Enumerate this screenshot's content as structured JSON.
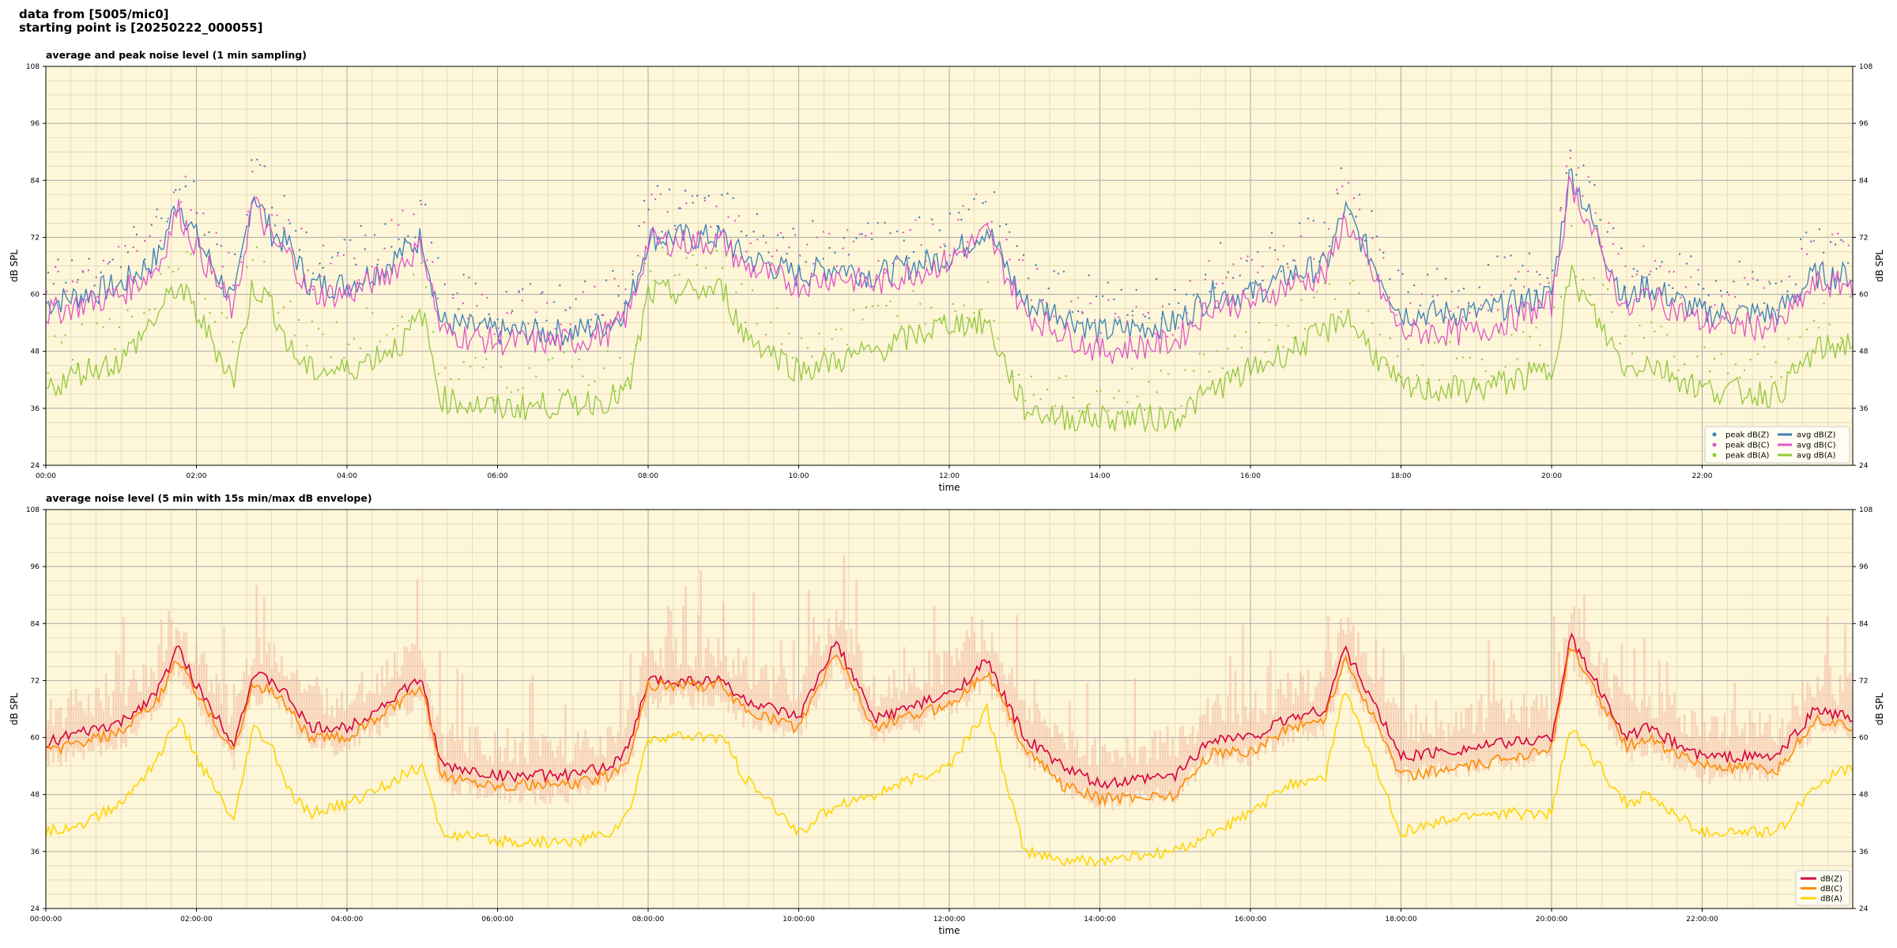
{
  "header": {
    "line1": "data from [5005/mic0]",
    "line2": "starting point is [20250222_000055]"
  },
  "colors": {
    "plot_bg": "#fdf6d8",
    "grid_major": "#a9a9a9",
    "grid_minor": "#d9cfae",
    "dBZ": "#3b7fb8",
    "dBC": "#e055c8",
    "dBA": "#93c83a",
    "env": "#f4b8a0",
    "dBZ_5min": "#d6003f",
    "dBC_5min": "#ff8a00",
    "dBA_5min": "#ffd400"
  },
  "chart_data": [
    {
      "type": "line",
      "title": "average and peak noise level (1 min sampling)",
      "xlabel": "time",
      "ylabel": "dB SPL",
      "ylim": [
        24,
        108
      ],
      "yticks": [
        "24",
        "36",
        "48",
        "60",
        "72",
        "84",
        "96",
        "108"
      ],
      "xlim_hours": [
        0,
        24
      ],
      "xticks": [
        "00:00",
        "02:00",
        "04:00",
        "06:00",
        "08:00",
        "10:00",
        "12:00",
        "14:00",
        "16:00",
        "18:00",
        "20:00",
        "22:00"
      ],
      "grid": true,
      "legend_position": "bottom-right",
      "legend": [
        "peak dB(Z)",
        "peak dB(C)",
        "peak dB(A)",
        "avg dB(Z)",
        "avg dB(C)",
        "avg dB(A)"
      ],
      "x": [
        0,
        0.5,
        1,
        1.5,
        1.75,
        2,
        2.5,
        2.75,
        3,
        3.25,
        3.5,
        4,
        4.5,
        4.75,
        5,
        5.25,
        6,
        7,
        7.5,
        7.75,
        8,
        9,
        9.25,
        10,
        10.5,
        11,
        12,
        12.5,
        13,
        13.5,
        14,
        15,
        15.5,
        16,
        16.5,
        17,
        17.25,
        18,
        19,
        20,
        20.25,
        21,
        21.25,
        22,
        23,
        23.5,
        24
      ],
      "series": [
        {
          "name": "avg dB(Z)",
          "values": [
            58,
            60,
            62,
            68,
            80,
            72,
            58,
            82,
            73,
            70,
            62,
            62,
            66,
            69,
            72,
            54,
            52,
            52,
            54,
            58,
            72,
            72,
            68,
            64,
            66,
            64,
            68,
            74,
            58,
            56,
            52,
            54,
            60,
            60,
            64,
            66,
            78,
            56,
            56,
            60,
            86,
            58,
            62,
            56,
            56,
            64,
            64
          ]
        },
        {
          "name": "avg dB(C)",
          "values": [
            56,
            58,
            60,
            66,
            78,
            70,
            56,
            80,
            71,
            68,
            60,
            60,
            64,
            67,
            70,
            52,
            50,
            50,
            52,
            56,
            71,
            71,
            66,
            62,
            64,
            62,
            67,
            73,
            56,
            52,
            48,
            50,
            58,
            58,
            62,
            64,
            76,
            52,
            52,
            58,
            84,
            56,
            60,
            54,
            53,
            62,
            62
          ]
        },
        {
          "name": "avg dB(A)",
          "values": [
            40,
            44,
            46,
            56,
            62,
            56,
            42,
            62,
            58,
            48,
            44,
            44,
            48,
            50,
            56,
            38,
            36,
            37,
            38,
            40,
            60,
            61,
            52,
            44,
            46,
            48,
            54,
            54,
            36,
            34,
            34,
            34,
            40,
            44,
            48,
            52,
            56,
            40,
            40,
            44,
            64,
            44,
            46,
            40,
            39,
            48,
            50
          ]
        }
      ]
    },
    {
      "type": "line",
      "title": "average noise level (5 min with 15s min/max dB envelope)",
      "xlabel": "time",
      "ylabel": "dB SPL",
      "ylim": [
        24,
        108
      ],
      "yticks": [
        "24",
        "36",
        "48",
        "60",
        "72",
        "84",
        "96",
        "108"
      ],
      "xlim_hours": [
        0,
        24
      ],
      "xticks": [
        "00:00:00",
        "02:00:00",
        "04:00:00",
        "06:00:00",
        "08:00:00",
        "10:00:00",
        "12:00:00",
        "14:00:00",
        "16:00:00",
        "18:00:00",
        "20:00:00",
        "22:00:00"
      ],
      "grid": true,
      "legend_position": "bottom-right",
      "legend": [
        "dB(Z)",
        "dB(C)",
        "dB(A)"
      ],
      "x": [
        0,
        0.5,
        1,
        1.5,
        1.75,
        2,
        2.5,
        2.75,
        3,
        3.25,
        3.5,
        4,
        4.5,
        4.75,
        5,
        5.25,
        6,
        7,
        7.5,
        7.75,
        8,
        9,
        9.25,
        10,
        10.5,
        11,
        12,
        12.5,
        13,
        13.5,
        14,
        15,
        15.5,
        16,
        16.5,
        17,
        17.25,
        18,
        19,
        20,
        20.25,
        21,
        21.25,
        22,
        23,
        23.5,
        24
      ],
      "series": [
        {
          "name": "dB(Z)",
          "values": [
            59,
            61,
            63,
            70,
            79,
            71,
            59,
            73,
            72,
            68,
            62,
            62,
            67,
            70,
            72,
            54,
            52,
            52,
            54,
            58,
            72,
            72,
            68,
            64,
            80,
            64,
            69,
            76,
            60,
            54,
            50,
            52,
            60,
            60,
            64,
            66,
            79,
            56,
            58,
            60,
            81,
            60,
            62,
            56,
            56,
            66,
            64
          ]
        },
        {
          "name": "dB(C)",
          "values": [
            57,
            59,
            61,
            68,
            77,
            69,
            57,
            71,
            70,
            66,
            60,
            60,
            65,
            68,
            70,
            52,
            50,
            50,
            52,
            56,
            71,
            71,
            66,
            62,
            78,
            62,
            67,
            74,
            58,
            50,
            47,
            48,
            57,
            57,
            62,
            64,
            77,
            52,
            54,
            58,
            79,
            58,
            60,
            54,
            53,
            64,
            62
          ]
        },
        {
          "name": "dB(A)",
          "values": [
            40,
            42,
            46,
            56,
            64,
            56,
            42,
            62,
            58,
            48,
            44,
            46,
            50,
            52,
            54,
            40,
            38,
            38,
            40,
            44,
            60,
            60,
            52,
            40,
            46,
            48,
            54,
            66,
            36,
            34,
            34,
            36,
            40,
            44,
            50,
            52,
            70,
            40,
            44,
            44,
            62,
            46,
            48,
            40,
            40,
            50,
            54
          ]
        }
      ]
    }
  ]
}
